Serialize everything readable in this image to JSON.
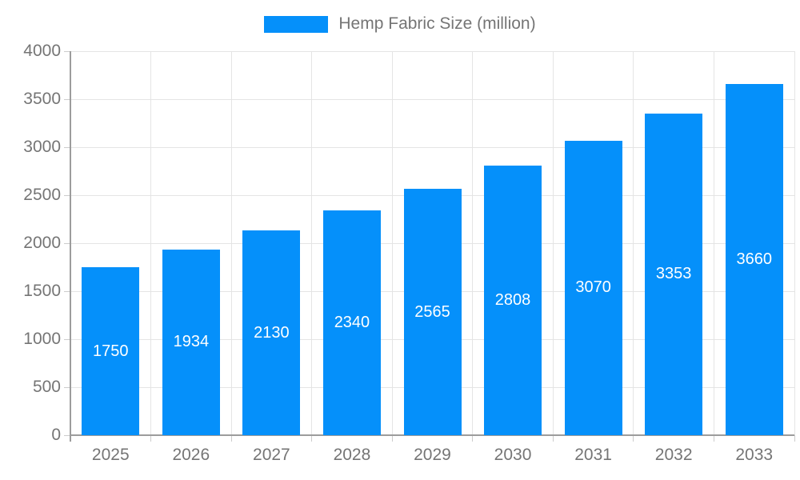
{
  "legend": {
    "label": "Hemp Fabric Size (million)"
  },
  "chart_data": {
    "type": "bar",
    "title": "Hemp Fabric Size (million)",
    "categories": [
      "2025",
      "2026",
      "2027",
      "2028",
      "2029",
      "2030",
      "2031",
      "2032",
      "2033"
    ],
    "values": [
      1750,
      1934,
      2130,
      2340,
      2565,
      2808,
      3070,
      3353,
      3660
    ],
    "series": [
      {
        "name": "Hemp Fabric Size (million)",
        "values": [
          1750,
          1934,
          2130,
          2340,
          2565,
          2808,
          3070,
          3353,
          3660
        ]
      }
    ],
    "xlabel": "",
    "ylabel": "",
    "ylim": [
      0,
      4000
    ],
    "yticks": [
      0,
      500,
      1000,
      1500,
      2000,
      2500,
      3000,
      3500,
      4000
    ],
    "grid": true,
    "legend_position": "top-center",
    "bar_labels_visible": true,
    "colors": {
      "bar": "#0590fa",
      "bar_label": "#ffffff",
      "axis_text": "#757575",
      "grid_line": "#e4e4e4",
      "axis_line": "#9c9c9c",
      "tick": "#cccccc",
      "background": "#ffffff"
    }
  }
}
